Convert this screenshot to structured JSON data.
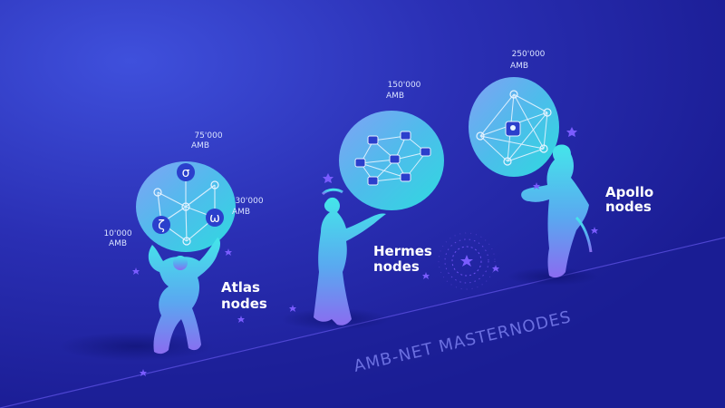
{
  "headline": "AMB-NET MASTERNODES",
  "atlas": {
    "name": "Atlas",
    "suffix": "nodes",
    "stake_top": {
      "amount": "75'000",
      "unit": "AMB"
    },
    "stake_right": {
      "amount": "30'000",
      "unit": "AMB"
    },
    "stake_left": {
      "amount": "10'000",
      "unit": "AMB"
    },
    "symbols": [
      "σ",
      "ω",
      "ζ"
    ]
  },
  "hermes": {
    "name": "Hermes",
    "suffix": "nodes",
    "stake": {
      "amount": "150'000",
      "unit": "AMB"
    }
  },
  "apollo": {
    "name": "Apollo",
    "suffix": "nodes",
    "stake": {
      "amount": "250'000",
      "unit": "AMB"
    }
  },
  "colors": {
    "background_dark": "#1b1f9a",
    "background_light": "#3a48d6",
    "figure_top": "#3fe0e8",
    "figure_bottom": "#7e6cf0",
    "label": "#ffffff",
    "stake_text": "#d9e2ff",
    "headline": "#5f63d8",
    "star": "#7a5cff"
  }
}
